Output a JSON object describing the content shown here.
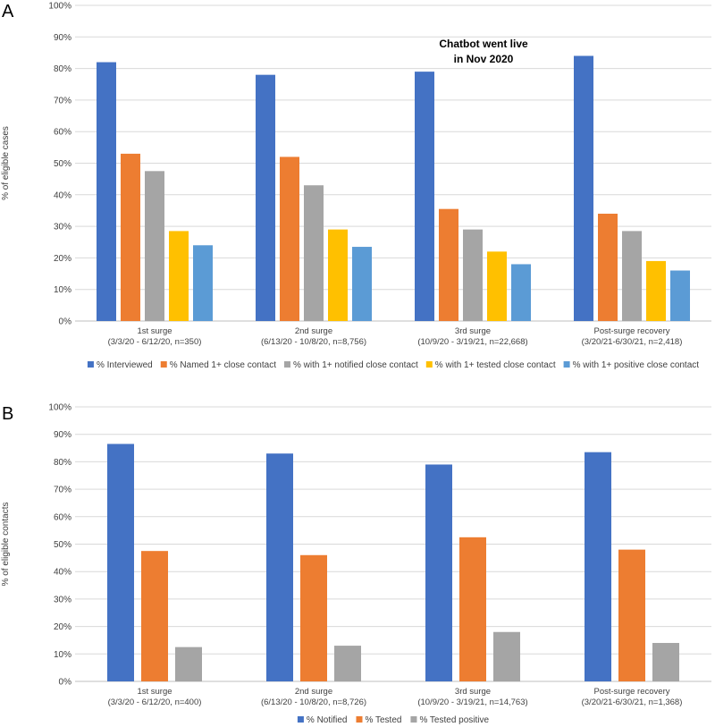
{
  "chart_data": [
    {
      "type": "bar",
      "panel": "A",
      "title": "",
      "xlabel": "",
      "ylabel": "% of eligible cases",
      "ylim": [
        0,
        100
      ],
      "yticks": [
        "0%",
        "10%",
        "20%",
        "30%",
        "40%",
        "50%",
        "60%",
        "70%",
        "80%",
        "90%",
        "100%"
      ],
      "grid": true,
      "legend_position": "bottom",
      "categories": [
        [
          "1st surge",
          "(3/3/20 - 6/12/20, n=350)"
        ],
        [
          "2nd surge",
          "(6/13/20 - 10/8/20, n=8,756)"
        ],
        [
          "3rd surge",
          "(10/9/20 - 3/19/21, n=22,668)"
        ],
        [
          "Post-surge recovery",
          "(3/20/21-6/30/21, n=2,418)"
        ]
      ],
      "series": [
        {
          "name": "% Interviewed",
          "color": "#4472c4",
          "values": [
            82,
            78,
            79,
            84
          ]
        },
        {
          "name": "% Named 1+ close contact",
          "color": "#ed7d31",
          "values": [
            53,
            52,
            35.5,
            34
          ]
        },
        {
          "name": "% with 1+ notified close contact",
          "color": "#a5a5a5",
          "values": [
            47.5,
            43,
            29,
            28.5
          ]
        },
        {
          "name": "% with 1+ tested close contact",
          "color": "#ffc000",
          "values": [
            28.5,
            29,
            22,
            19
          ]
        },
        {
          "name": "% with 1+ positive close contact",
          "color": "#5b9bd5",
          "values": [
            24,
            23.5,
            18,
            16
          ]
        }
      ],
      "annotation": {
        "lines": [
          "Chatbot went live",
          "in Nov 2020"
        ],
        "category_index": 2
      }
    },
    {
      "type": "bar",
      "panel": "B",
      "title": "",
      "xlabel": "",
      "ylabel": "% of eligible contacts",
      "ylim": [
        0,
        100
      ],
      "yticks": [
        "0%",
        "10%",
        "20%",
        "30%",
        "40%",
        "50%",
        "60%",
        "70%",
        "80%",
        "90%",
        "100%"
      ],
      "grid": true,
      "legend_position": "bottom",
      "categories": [
        [
          "1st surge",
          "(3/3/20 - 6/12/20, n=400)"
        ],
        [
          "2nd surge",
          "(6/13/20 - 10/8/20, n=8,726)"
        ],
        [
          "3rd surge",
          "(10/9/20 - 3/19/21, n=14,763)"
        ],
        [
          "Post-surge recovery",
          "(3/20/21-6/30/21, n=1,368)"
        ]
      ],
      "series": [
        {
          "name": "% Notified",
          "color": "#4472c4",
          "values": [
            86.5,
            83,
            79,
            83.5
          ]
        },
        {
          "name": "% Tested",
          "color": "#ed7d31",
          "values": [
            47.5,
            46,
            52.5,
            48
          ]
        },
        {
          "name": "% Tested positive",
          "color": "#a5a5a5",
          "values": [
            12.5,
            13,
            18,
            14
          ]
        }
      ]
    }
  ]
}
